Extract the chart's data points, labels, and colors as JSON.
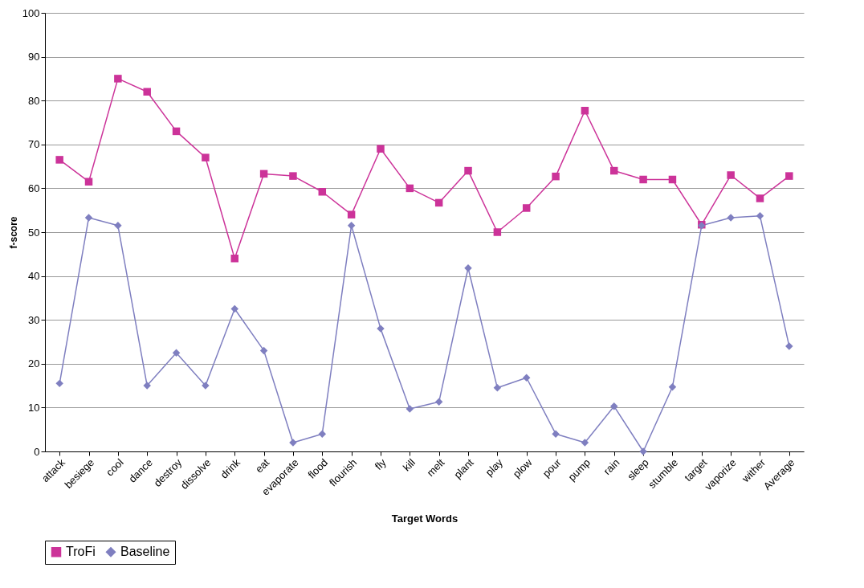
{
  "chart_data": {
    "type": "line",
    "xlabel": "Target Words",
    "ylabel": "f-score",
    "categories": [
      "attack",
      "besiege",
      "cool",
      "dance",
      "destroy",
      "dissolve",
      "drink",
      "eat",
      "evaporate",
      "flood",
      "flourish",
      "fly",
      "kill",
      "melt",
      "plant",
      "play",
      "plow",
      "pour",
      "pump",
      "rain",
      "sleep",
      "stumble",
      "target",
      "vaporize",
      "wither",
      "Average"
    ],
    "series": [
      {
        "name": "TroFi",
        "color": "#cc3399",
        "marker": "square",
        "values": [
          66.5,
          61.5,
          85,
          82,
          73,
          67,
          44,
          63.3,
          62.8,
          59.2,
          54,
          69,
          60,
          56.7,
          64,
          50,
          55.5,
          62.7,
          77.7,
          64,
          62,
          62,
          51.7,
          63,
          57.7,
          62.8
        ]
      },
      {
        "name": "Baseline",
        "color": "#7f7fc0",
        "marker": "diamond",
        "values": [
          15.5,
          53.3,
          51.5,
          15,
          22.5,
          15,
          32.5,
          23,
          2,
          4,
          51.5,
          28,
          9.7,
          11.3,
          41.8,
          14.5,
          16.8,
          4,
          2,
          10.3,
          0,
          14.7,
          51.5,
          53.3,
          53.7,
          24
        ]
      }
    ],
    "ylim": [
      0,
      100
    ],
    "yticks": [
      0,
      10,
      20,
      30,
      40,
      50,
      60,
      70,
      80,
      90,
      100
    ],
    "grid": "y",
    "legend": "bottom",
    "line_style": "solid"
  }
}
